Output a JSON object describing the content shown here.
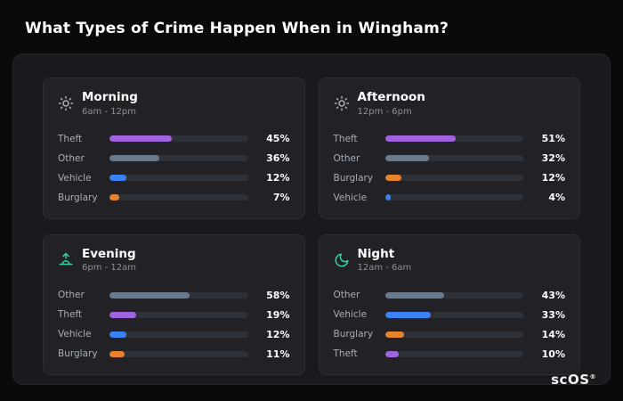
{
  "page": {
    "title": "What Types of Crime Happen When in Wingham?",
    "brand": "scOS",
    "brand_mark": "®"
  },
  "colors": {
    "theft": "#a263e0",
    "other": "#697a8d",
    "vehicle": "#3b82f6",
    "burglary": "#e8822c",
    "icon_gray": "#aab0b8",
    "icon_teal": "#36d39f"
  },
  "chart_data": [
    {
      "type": "bar",
      "title": "Morning",
      "subtitle": "6am - 12pm",
      "icon": "sun-icon",
      "xlim": [
        0,
        100
      ],
      "rows": [
        {
          "label": "Theft",
          "value": 45,
          "color": "#a263e0"
        },
        {
          "label": "Other",
          "value": 36,
          "color": "#697a8d"
        },
        {
          "label": "Vehicle",
          "value": 12,
          "color": "#3b82f6"
        },
        {
          "label": "Burglary",
          "value": 7,
          "color": "#e8822c"
        }
      ]
    },
    {
      "type": "bar",
      "title": "Afternoon",
      "subtitle": "12pm - 6pm",
      "icon": "sun-icon",
      "xlim": [
        0,
        100
      ],
      "rows": [
        {
          "label": "Theft",
          "value": 51,
          "color": "#a263e0"
        },
        {
          "label": "Other",
          "value": 32,
          "color": "#697a8d"
        },
        {
          "label": "Burglary",
          "value": 12,
          "color": "#e8822c"
        },
        {
          "label": "Vehicle",
          "value": 4,
          "color": "#3b82f6"
        }
      ]
    },
    {
      "type": "bar",
      "title": "Evening",
      "subtitle": "6pm - 12am",
      "icon": "sunset-icon",
      "xlim": [
        0,
        100
      ],
      "rows": [
        {
          "label": "Other",
          "value": 58,
          "color": "#697a8d"
        },
        {
          "label": "Theft",
          "value": 19,
          "color": "#a263e0"
        },
        {
          "label": "Vehicle",
          "value": 12,
          "color": "#3b82f6"
        },
        {
          "label": "Burglary",
          "value": 11,
          "color": "#e8822c"
        }
      ]
    },
    {
      "type": "bar",
      "title": "Night",
      "subtitle": "12am - 6am",
      "icon": "moon-icon",
      "xlim": [
        0,
        100
      ],
      "rows": [
        {
          "label": "Other",
          "value": 43,
          "color": "#697a8d"
        },
        {
          "label": "Vehicle",
          "value": 33,
          "color": "#3b82f6"
        },
        {
          "label": "Burglary",
          "value": 14,
          "color": "#e8822c"
        },
        {
          "label": "Theft",
          "value": 10,
          "color": "#a263e0"
        }
      ]
    }
  ]
}
